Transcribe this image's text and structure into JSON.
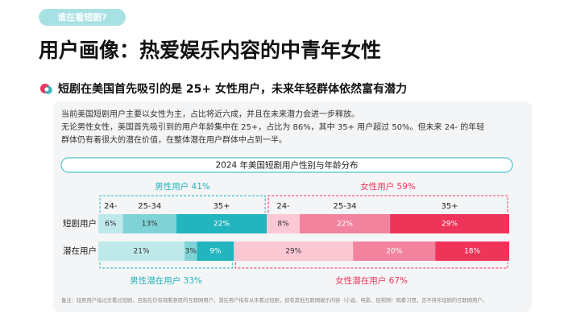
{
  "tag": "谁在看短剧?",
  "title": "用户画像：热爱娱乐内容的中青年女性",
  "subtitle": "短剧在美国首先吸引的是 25+ 女性用户，未来年轻群体依然富有潜力",
  "paragraphs": [
    "当前美国短剧用户主要以女性为主，占比将近六成，并且在未来潜力会进一步释放。",
    "无论男性女性，美国首先吸引到的用户年龄集中在 25+，占比为 86%，其中 35+ 用户超过 50%。但未来 24- 的年轻",
    "群体仍有着很大的潜在价值，在整体潜在用户群体中占到一半。"
  ],
  "footnote": "备注：短剧用户指过去看过短剧，且现在仍有观看意愿的互联网用户，潜在用户指有从未看过短剧，但有其他互联网娱乐内容（小说、电影、短视频）观看习惯，且不排斥短剧的互联网用户。",
  "chart_data": {
    "type": "stacked-bar-horizontal",
    "title": "2024 年美国短剧用户性别与年龄分布",
    "categories": [
      "短剧用户",
      "潜在用户"
    ],
    "xlim": [
      0,
      100
    ],
    "series": [
      {
        "name": "24-",
        "color": "#bfe8ea",
        "values": [
          6,
          21
        ],
        "value_labels": [
          "6%",
          "21%"
        ]
      },
      {
        "name": "25-34",
        "color": "#7fd3d7",
        "values": [
          13,
          3
        ],
        "value_labels": [
          "13%",
          "3%"
        ]
      },
      {
        "name": "35+",
        "color": "#23b5bd",
        "values": [
          22,
          9
        ],
        "value_labels": [
          "22%",
          "9%"
        ]
      },
      {
        "name": "24-",
        "color": "#fcc8d4",
        "values": [
          8,
          29
        ],
        "value_labels": [
          "8%",
          "29%"
        ]
      },
      {
        "name": "25-34",
        "color": "#f2839f",
        "values": [
          22,
          20
        ],
        "value_labels": [
          "22%",
          "20%"
        ]
      },
      {
        "name": "35+",
        "color": "#ef3459",
        "values": [
          29,
          18
        ],
        "value_labels": [
          "29%",
          "18%"
        ]
      }
    ],
    "brackets": [
      [
        {
          "label": "男性用户",
          "value": 41,
          "value_label": "41%",
          "color": "#23b5bd"
        },
        {
          "label": "女性用户",
          "value": 59,
          "value_label": "59%",
          "color": "#ef3459"
        }
      ],
      [
        {
          "label": "男性潜在用户",
          "value": 33,
          "value_label": "33%",
          "color": "#23b5bd"
        },
        {
          "label": "女性潜在用户",
          "value": 67,
          "value_label": "67%",
          "color": "#ef3459"
        }
      ]
    ]
  }
}
